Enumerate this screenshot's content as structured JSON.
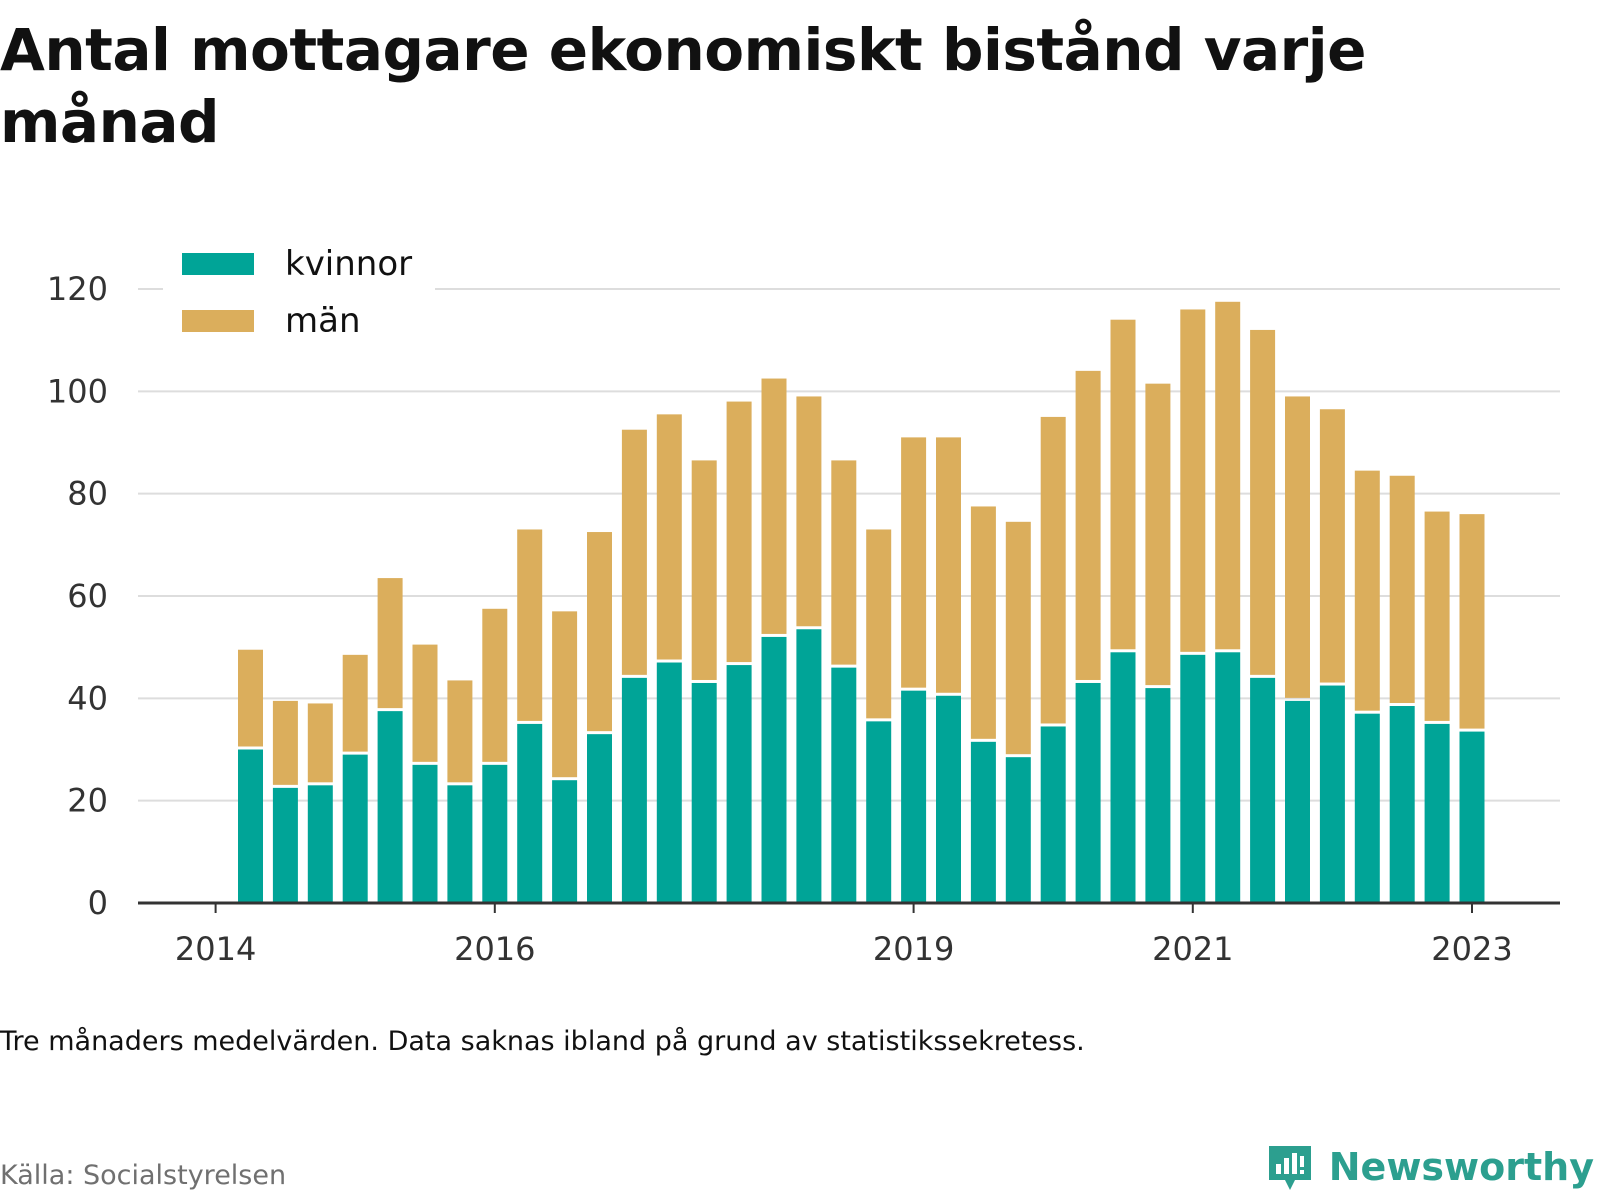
{
  "title": "Antal mottagare ekonomiskt bistånd varje månad",
  "note": "Tre månaders medelvärden. Data saknas ibland på grund av statistikssekretess.",
  "source": "Källa: Socialstyrelsen",
  "brand": {
    "name": "Newsworthy",
    "icon": "newsworthy-chart-icon"
  },
  "colors": {
    "kvinnor": "#00a497",
    "man": "#dbae5c",
    "grid": "#dddddd",
    "axis": "#333333"
  },
  "chart_data": {
    "type": "bar",
    "stacked": true,
    "ylim": [
      0,
      120
    ],
    "yticks": [
      0,
      20,
      40,
      60,
      80,
      100,
      120
    ],
    "xticks": [
      "2014",
      "2016",
      "2019",
      "2021",
      "2023"
    ],
    "xtick_bar_index": [
      -1,
      7,
      19,
      27,
      35
    ],
    "legend_position": "top-left",
    "grid": true,
    "series": [
      {
        "name": "kvinnor",
        "values": [
          30,
          22.5,
          23,
          29,
          37.5,
          27,
          23,
          27,
          35,
          24,
          33,
          44,
          47,
          43,
          46.5,
          52,
          53.5,
          46,
          35.5,
          41.5,
          40.5,
          31.5,
          28.5,
          34.5,
          43,
          49,
          42,
          48.5,
          49,
          44,
          39.5,
          42.5,
          37,
          38.5,
          35,
          33.5
        ]
      },
      {
        "name": "män",
        "values": [
          19.5,
          17,
          16,
          19.5,
          26,
          23.5,
          20.5,
          30.5,
          38,
          33,
          39.5,
          48.5,
          48.5,
          43.5,
          51.5,
          50.5,
          45.5,
          40.5,
          37.5,
          49.5,
          50.5,
          46,
          46,
          60.5,
          61,
          65,
          59.5,
          67.5,
          68.5,
          68,
          59.5,
          54,
          47.5,
          45,
          41.5,
          42.5
        ]
      }
    ]
  }
}
